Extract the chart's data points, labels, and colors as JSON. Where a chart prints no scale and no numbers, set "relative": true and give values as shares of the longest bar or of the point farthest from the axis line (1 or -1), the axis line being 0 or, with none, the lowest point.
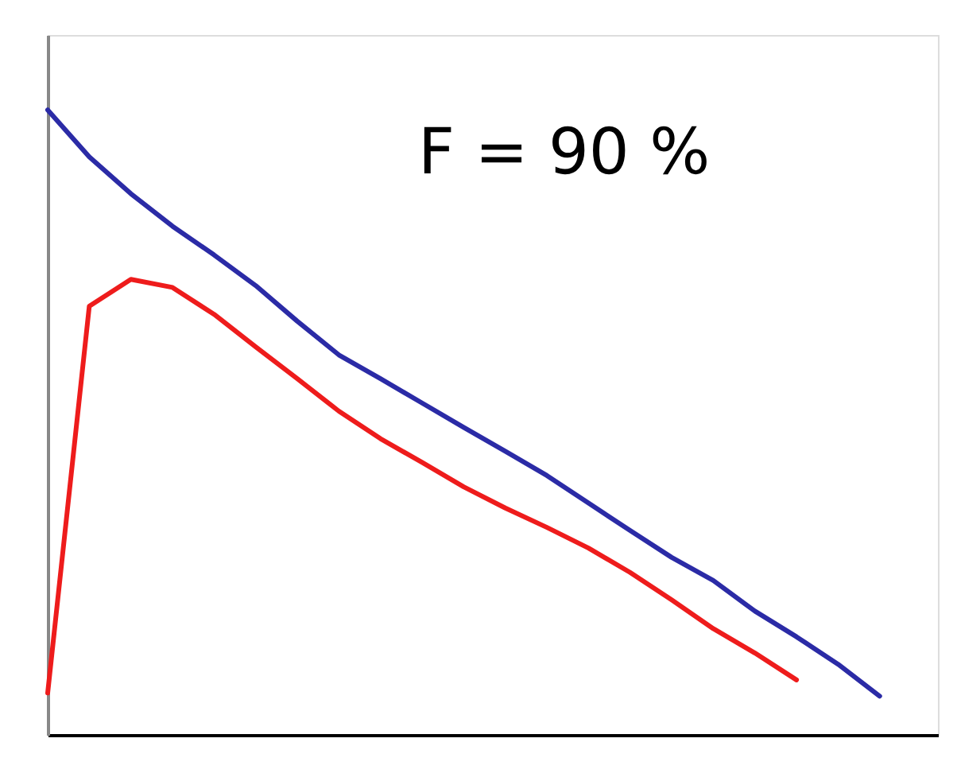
{
  "chart_data": {
    "type": "line",
    "relative": true,
    "tick_labels": false,
    "grid": false,
    "legend": false,
    "marker": "none",
    "line_style": "solid",
    "categories": [
      null,
      null,
      null,
      null,
      null,
      null,
      null,
      null,
      null,
      null,
      null,
      null,
      null,
      null,
      null,
      null,
      null,
      null,
      null,
      null,
      null
    ],
    "annotations": [
      "F = 90 %"
    ],
    "series": [
      {
        "color": "#2b2ba6",
        "values": [
          1.0,
          0.925,
          0.866,
          0.814,
          0.768,
          0.719,
          0.662,
          0.608,
          0.57,
          0.531,
          0.492,
          0.454,
          0.415,
          0.371,
          0.327,
          0.284,
          0.247,
          0.198,
          0.157,
          0.113,
          0.062
        ]
      },
      {
        "color": "#ee1c1c",
        "values": [
          0.067,
          0.686,
          0.729,
          0.716,
          0.673,
          0.621,
          0.57,
          0.518,
          0.474,
          0.436,
          0.397,
          0.363,
          0.332,
          0.299,
          0.26,
          0.216,
          0.17,
          0.131,
          0.088,
          null,
          null
        ]
      }
    ]
  }
}
